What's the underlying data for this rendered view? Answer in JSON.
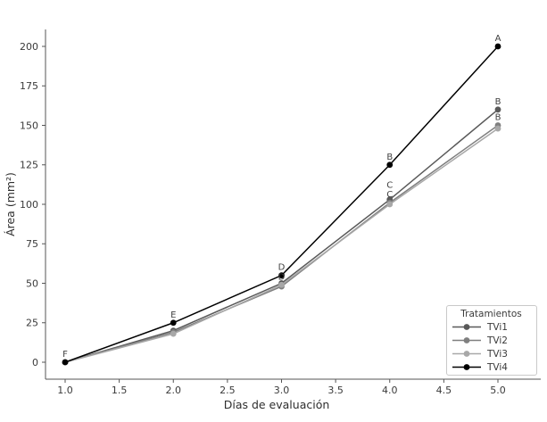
{
  "chart_data": {
    "type": "line",
    "title": "",
    "xlabel": "Días de evaluación",
    "ylabel": "Área (mm²)",
    "grid": false,
    "background": "#ffffff",
    "spine_color": "#555555",
    "xlim": [
      0.82,
      5.4
    ],
    "ylim": [
      -10,
      211
    ],
    "x": [
      1,
      2,
      3,
      4,
      5
    ],
    "xticks": [
      1.0,
      1.5,
      2.0,
      2.5,
      3.0,
      3.5,
      4.0,
      4.5,
      5.0
    ],
    "xtick_labels": [
      "1.0",
      "1.5",
      "2.0",
      "2.5",
      "3.0",
      "3.5",
      "4.0",
      "4.5",
      "5.0"
    ],
    "yticks": [
      0,
      25,
      50,
      75,
      100,
      125,
      150,
      175,
      200
    ],
    "ytick_labels": [
      "0",
      "25",
      "50",
      "75",
      "100",
      "125",
      "150",
      "175",
      "200"
    ],
    "series": [
      {
        "name": "TVi1",
        "color": "#595959",
        "values": [
          0,
          20,
          50,
          103,
          160
        ]
      },
      {
        "name": "TVi2",
        "color": "#7f7f7f",
        "values": [
          0,
          19,
          48,
          101,
          150
        ]
      },
      {
        "name": "TVi3",
        "color": "#a8a8a8",
        "values": [
          0,
          18,
          49,
          100,
          148
        ]
      },
      {
        "name": "TVi4",
        "color": "#000000",
        "values": [
          0,
          25,
          55,
          125,
          200
        ]
      }
    ],
    "annotations": [
      {
        "label": "F",
        "x": 1,
        "y": 0,
        "series": "all"
      },
      {
        "label": "E",
        "x": 2,
        "y": 25,
        "series": "TVi4"
      },
      {
        "label": "D",
        "x": 3,
        "y": 55,
        "series": "TVi4"
      },
      {
        "label": "D",
        "x": 3,
        "y": 49,
        "series": "TVi1"
      },
      {
        "label": "B",
        "x": 4,
        "y": 125,
        "series": "TVi4"
      },
      {
        "label": "C",
        "x": 4,
        "y": 107,
        "series": "TVi1"
      },
      {
        "label": "C",
        "x": 4,
        "y": 101,
        "series": "TVi3"
      },
      {
        "label": "A",
        "x": 5,
        "y": 200,
        "series": "TVi4"
      },
      {
        "label": "B",
        "x": 5,
        "y": 160,
        "series": "TVi1"
      },
      {
        "label": "B",
        "x": 5,
        "y": 150,
        "series": "TVi2"
      }
    ],
    "legend": {
      "title": "Tratamientos",
      "position": "lower right",
      "border_color": "#c9c9c9",
      "items": [
        "TVi1",
        "TVi2",
        "TVi3",
        "TVi4"
      ]
    }
  }
}
